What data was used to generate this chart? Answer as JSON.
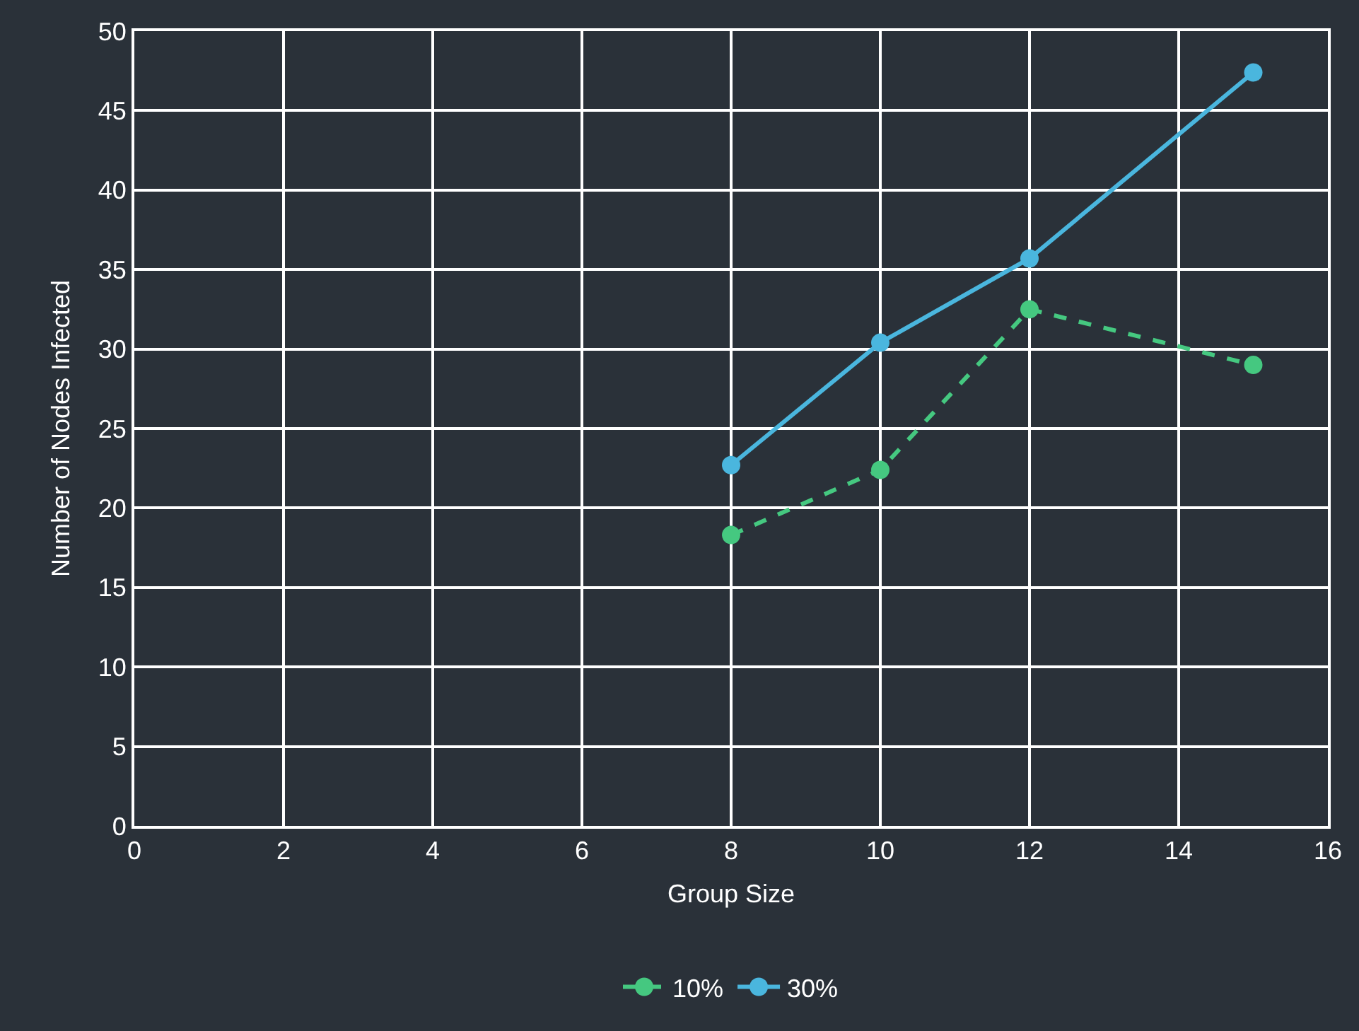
{
  "chart_data": {
    "type": "line",
    "xlabel": "Group Size",
    "ylabel": "Number of Nodes Infected",
    "xlim": [
      0,
      16
    ],
    "xticks": [
      0,
      2,
      4,
      6,
      8,
      10,
      12,
      14,
      16
    ],
    "ylim": [
      0,
      50
    ],
    "yticks": [
      0,
      5,
      10,
      15,
      20,
      25,
      30,
      35,
      40,
      45,
      50
    ],
    "grid": true,
    "legend": "bottom",
    "marker": "circle",
    "series": [
      {
        "name": "10%",
        "color": "#45c880",
        "line_style": "dashed",
        "x": [
          8,
          10,
          12,
          15
        ],
        "values": [
          18.3,
          22.4,
          32.5,
          29.0
        ]
      },
      {
        "name": "30%",
        "color": "#4ab6de",
        "line_style": "solid",
        "x": [
          8,
          10,
          12,
          15
        ],
        "values": [
          22.7,
          30.4,
          35.7,
          47.4
        ]
      }
    ]
  }
}
